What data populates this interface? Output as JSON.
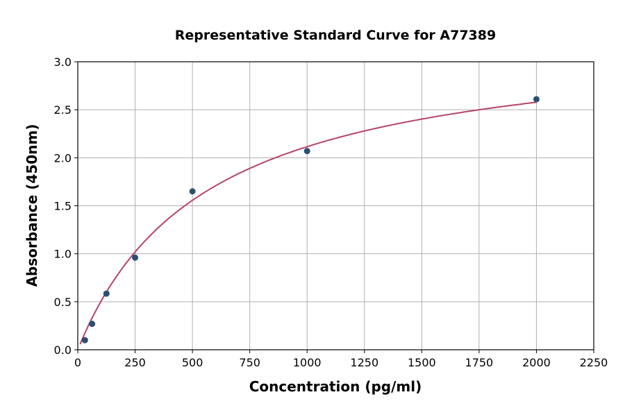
{
  "chart_data": {
    "type": "scatter",
    "title": "Representative Standard Curve for A77389",
    "xlabel": "Concentration (pg/ml)",
    "ylabel": "Absorbance (450nm)",
    "xlim": [
      0,
      2250
    ],
    "ylim": [
      0,
      3.0
    ],
    "xticks": [
      "0",
      "250",
      "500",
      "750",
      "1000",
      "1250",
      "1500",
      "1750",
      "2000",
      "2250"
    ],
    "yticks": [
      "0.0",
      "0.5",
      "1.0",
      "1.5",
      "2.0",
      "2.5",
      "3.0"
    ],
    "grid": true,
    "points": {
      "x": [
        31.25,
        62.5,
        125,
        250,
        500,
        1000,
        2000
      ],
      "y": [
        0.1,
        0.27,
        0.585,
        0.96,
        1.65,
        2.07,
        2.61
      ]
    },
    "fit_curve": {
      "model": "4PL",
      "a": 0,
      "d": 3.3,
      "c": 560,
      "b": 1.0,
      "x_range": [
        10,
        2000
      ]
    },
    "colors": {
      "points": "#2b4f72",
      "curve": "#b5436a",
      "grid": "#b0b0b0"
    }
  }
}
